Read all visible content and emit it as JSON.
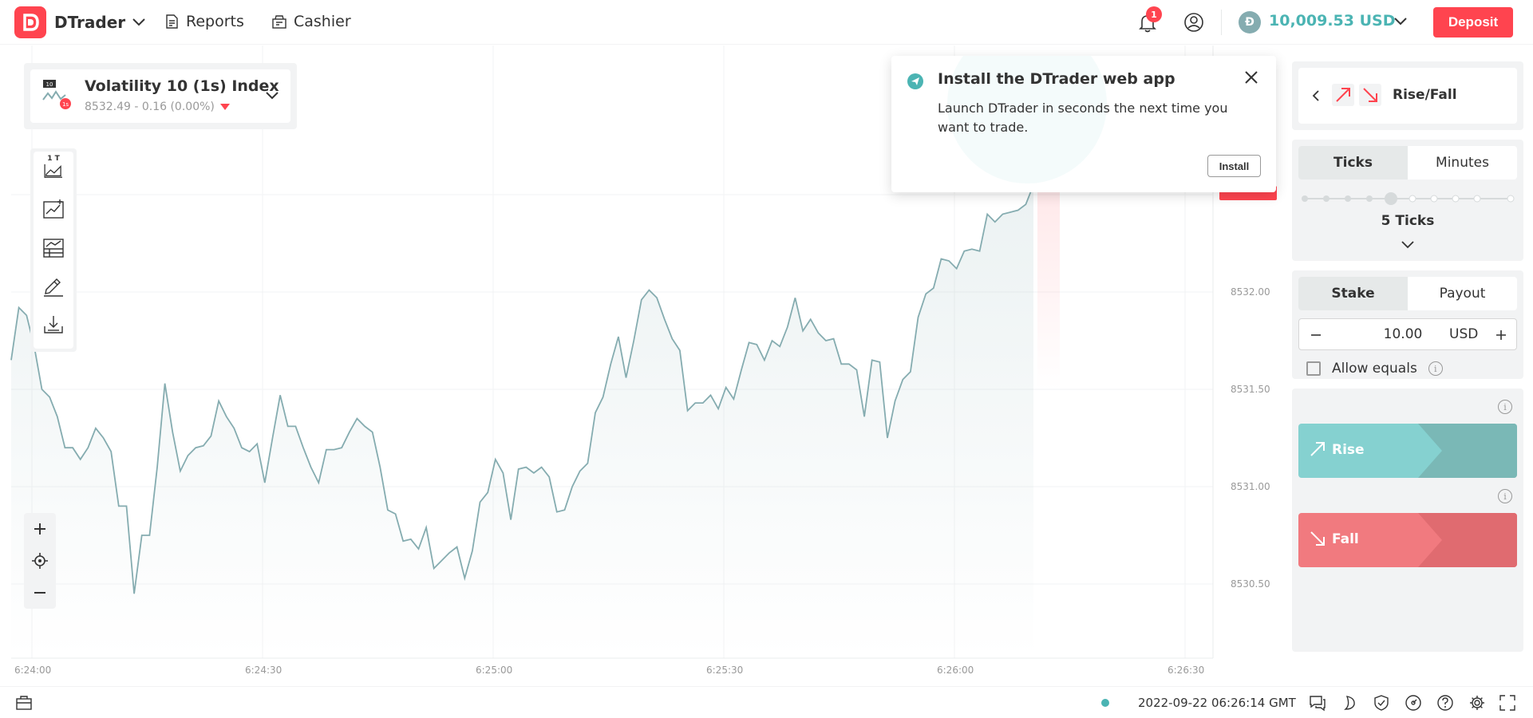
{
  "header": {
    "brand": "DTrader",
    "nav": {
      "reports": "Reports",
      "cashier": "Cashier"
    },
    "notifications_count": "1",
    "balance": "10,009.53 USD",
    "deposit_label": "Deposit",
    "colors": {
      "brand": "#ff444f",
      "balance": "#4bb4b3"
    }
  },
  "symbol": {
    "name": "Volatility 10 (1s) Index",
    "quote": "8532.49 - 0.16 (0.00%)",
    "icon_badge_top": "10",
    "icon_badge_bottom": "1s"
  },
  "toolbar": {
    "chart_type_label": "1 T"
  },
  "chart_data": {
    "type": "line",
    "x_ticks": [
      "6:24:00",
      "6:24:30",
      "6:25:00",
      "6:25:30",
      "6:26:00",
      "6:26:30"
    ],
    "y_ticks": [
      "8532.00",
      "8531.50",
      "8531.00",
      "8530.50"
    ],
    "ylim": [
      8530.25,
      8532.8
    ],
    "series": [
      {
        "values": [
          8531.65,
          8531.92,
          8531.88,
          8531.72,
          8531.5,
          8531.46,
          8531.36,
          8531.2,
          8531.2,
          8531.14,
          8531.2,
          8531.3,
          8531.25,
          8531.18,
          8530.9,
          8530.9,
          8530.45,
          8530.75,
          8530.75,
          8531.1,
          8531.53,
          8531.28,
          8531.08,
          8531.16,
          8531.2,
          8531.21,
          8531.26,
          8531.44,
          8531.36,
          8531.3,
          8531.2,
          8531.18,
          8531.22,
          8531.02,
          8531.25,
          8531.47,
          8531.31,
          8531.31,
          8531.2,
          8531.1,
          8531.02,
          8531.19,
          8531.19,
          8531.2,
          8531.28,
          8531.35,
          8531.31,
          8531.28,
          8531.1,
          8530.88,
          8530.86,
          8530.72,
          8530.73,
          8530.68,
          8530.79,
          8530.58,
          8530.62,
          8530.66,
          8530.69,
          8530.53,
          8530.67,
          8530.92,
          8530.97,
          8531.14,
          8531.07,
          8530.83,
          8531.09,
          8531.1,
          8531.07,
          8531.1,
          8531.05,
          8530.87,
          8530.88,
          8531.0,
          8531.08,
          8531.12,
          8531.38,
          8531.46,
          8531.63,
          8531.77,
          8531.56,
          8531.75,
          8531.96,
          8532.01,
          8531.97,
          8531.86,
          8531.76,
          8531.7,
          8531.39,
          8531.43,
          8531.43,
          8531.47,
          8531.4,
          8531.51,
          8531.45,
          8531.6,
          8531.74,
          8531.73,
          8531.65,
          8531.75,
          8531.72,
          8531.82,
          8531.97,
          8531.8,
          8531.86,
          8531.79,
          8531.75,
          8531.76,
          8531.63,
          8531.63,
          8531.6,
          8531.36,
          8531.65,
          8531.64,
          8531.25,
          8531.44,
          8531.55,
          8531.59,
          8531.87,
          8531.99,
          8532.02,
          8532.17,
          8532.16,
          8532.12,
          8532.21,
          8532.22,
          8532.21,
          8532.4,
          8532.36,
          8532.4,
          8532.41,
          8532.42,
          8532.45,
          8532.55
        ]
      }
    ],
    "grid": true,
    "colors": {
      "line": "#85acb0"
    }
  },
  "popup": {
    "title": "Install the DTrader web app",
    "body": "Launch DTrader in seconds the next time you want to trade.",
    "install_label": "Install"
  },
  "trade": {
    "type_label": "Rise/Fall",
    "duration_tabs": [
      "Ticks",
      "Minutes"
    ],
    "ticks_label": "5 Ticks",
    "stake_tabs": [
      "Stake",
      "Payout"
    ],
    "stake_value": "10.00",
    "currency": "USD",
    "allow_equals_label": "Allow equals",
    "rise_label": "Rise",
    "fall_label": "Fall",
    "colors": {
      "rise": "#85d1d0",
      "fall": "#f17a7f"
    }
  },
  "footer": {
    "datetime": "2022-09-22 06:26:14 GMT"
  }
}
